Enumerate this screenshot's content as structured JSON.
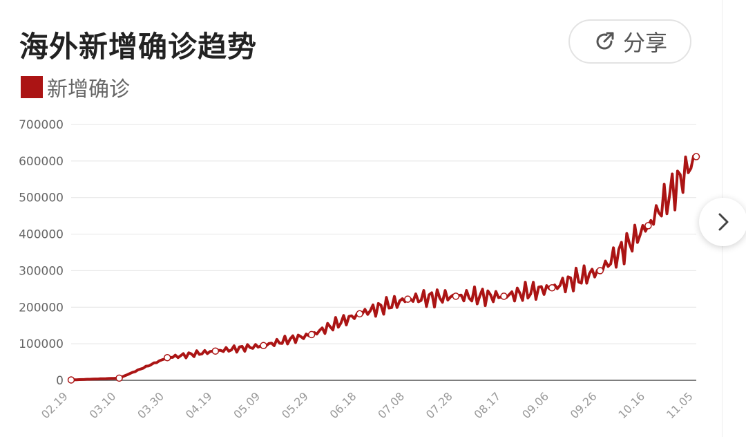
{
  "header": {
    "title": "海外新增确诊趋势",
    "share_label": "分享"
  },
  "legend": {
    "label": "新增确诊",
    "color": "#ab1414"
  },
  "colors": {
    "series": "#ab1414",
    "grid": "#e4e4e4",
    "axis": "#555555",
    "tick_text": "#666666",
    "x_tick_text": "#999999"
  },
  "icons": {
    "share": "share-icon",
    "next": "chevron-right-icon"
  },
  "chart_data": {
    "type": "line",
    "title": "海外新增确诊趋势",
    "legend_position": "top-left",
    "grid": true,
    "ylim": [
      0,
      700000
    ],
    "y_ticks": [
      "0",
      "100000",
      "200000",
      "300000",
      "400000",
      "500000",
      "600000",
      "700000"
    ],
    "x_ticks": [
      "02.19",
      "03.10",
      "03.30",
      "04.19",
      "05.09",
      "05.29",
      "06.18",
      "07.08",
      "07.28",
      "08.17",
      "09.06",
      "09.26",
      "10.16",
      "11.05"
    ],
    "series": [
      {
        "name": "新增确诊",
        "x": [
          "02.19",
          "03.10",
          "03.30",
          "04.19",
          "05.09",
          "05.29",
          "06.18",
          "07.08",
          "07.28",
          "08.17",
          "09.06",
          "09.26",
          "10.16",
          "11.05"
        ],
        "values": [
          1000,
          6000,
          62000,
          80000,
          95000,
          125000,
          182000,
          222000,
          230000,
          230000,
          253000,
          300000,
          423000,
          612000
        ]
      }
    ]
  }
}
